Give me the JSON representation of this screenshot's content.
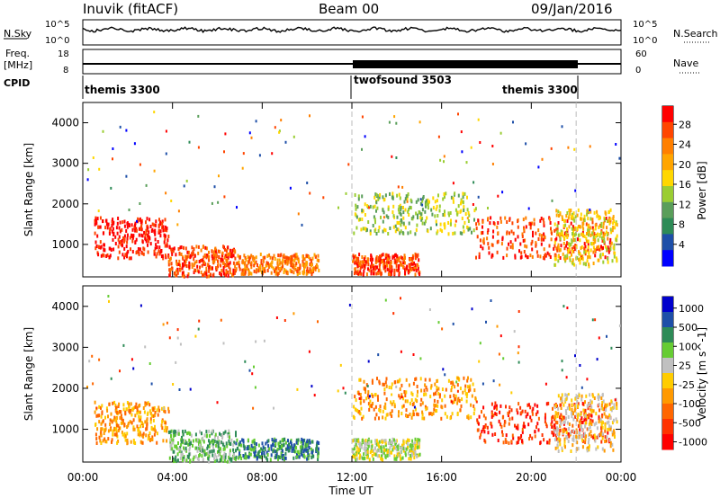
{
  "header": {
    "station": "Inuvik (fitACF)",
    "beam": "Beam 00",
    "date": "09/Jan/2016"
  },
  "sky_panel": {
    "left_label": "N.Sky",
    "right_label": "N.Search",
    "ticks": [
      "10^5",
      "10^0"
    ],
    "right_ticks": [
      "10^5",
      "10^0"
    ]
  },
  "freq_panel": {
    "left_label": "Freq.",
    "unit": "[MHz]",
    "right_label": "Nave",
    "left_ticks": [
      "18",
      "8"
    ],
    "right_ticks": [
      "60",
      "0"
    ]
  },
  "cpid": {
    "label": "CPID",
    "segments": [
      {
        "name": "themis 3300",
        "start_h": 0,
        "end_h": 12
      },
      {
        "name": "twofsound 3503",
        "start_h": 12,
        "end_h": 18
      },
      {
        "name": "themis 3300",
        "start_h": 18,
        "end_h": 22
      }
    ]
  },
  "colors": {
    "power_scale": [
      "#0000ff",
      "#1e4fa8",
      "#2e8b57",
      "#5a9e5a",
      "#9acd32",
      "#ffd700",
      "#ffa500",
      "#ff7f00",
      "#ff4500",
      "#ff0000"
    ],
    "velocity_scale": [
      "#0000cc",
      "#1e4fa8",
      "#2e8b57",
      "#66cc33",
      "#c0c0c0",
      "#ffcc00",
      "#ff9900",
      "#ff6600",
      "#ff3300",
      "#ff0000"
    ],
    "gray": "#c0c0c0"
  },
  "chart_data": [
    {
      "type": "heatmap",
      "title": "",
      "xlabel": "",
      "ylabel": "Slant Range [km]",
      "xlim": [
        0,
        24
      ],
      "ylim": [
        200,
        4500
      ],
      "x_ticks": [
        "00:00",
        "04:00",
        "08:00",
        "12:00",
        "16:00",
        "20:00",
        "00:00"
      ],
      "y_ticks": [
        "1000",
        "2000",
        "3000",
        "4000"
      ],
      "colorbar_label": "Power [dB]",
      "colorbar_ticks": [
        "4",
        "8",
        "12",
        "16",
        "20",
        "24",
        "28"
      ],
      "regions": [
        {
          "x0": 0.5,
          "x1": 3.8,
          "y0": 700,
          "y1": 1700,
          "level": 9
        },
        {
          "x0": 3.8,
          "x1": 6.8,
          "y0": 250,
          "y1": 1000,
          "level": 8
        },
        {
          "x0": 6.8,
          "x1": 10.5,
          "y0": 300,
          "y1": 800,
          "level": 7
        },
        {
          "x0": 12.0,
          "x1": 15.0,
          "y0": 300,
          "y1": 800,
          "level": 8
        },
        {
          "x0": 12.0,
          "x1": 17.5,
          "y0": 1300,
          "y1": 2300,
          "level": 4
        },
        {
          "x0": 17.5,
          "x1": 23.5,
          "y0": 700,
          "y1": 1700,
          "level": 8
        },
        {
          "x0": 21.0,
          "x1": 23.8,
          "y0": 500,
          "y1": 1900,
          "level": 5
        }
      ]
    },
    {
      "type": "heatmap",
      "title": "",
      "xlabel": "Time UT",
      "ylabel": "Slant Range [km]",
      "xlim": [
        0,
        24
      ],
      "ylim": [
        200,
        4500
      ],
      "x_ticks": [
        "00:00",
        "04:00",
        "08:00",
        "12:00",
        "16:00",
        "20:00",
        "00:00"
      ],
      "y_ticks": [
        "1000",
        "2000",
        "3000",
        "4000"
      ],
      "colorbar_label": "Velocity [m s^-1]",
      "colorbar_ticks": [
        "1000",
        "500",
        "100",
        "25",
        "-25",
        "-100",
        "-500",
        "-1000"
      ],
      "regions": [
        {
          "x0": 0.5,
          "x1": 3.8,
          "y0": 700,
          "y1": 1700,
          "level": 6
        },
        {
          "x0": 3.8,
          "x1": 6.8,
          "y0": 250,
          "y1": 1000,
          "level": 3
        },
        {
          "x0": 6.8,
          "x1": 10.5,
          "y0": 300,
          "y1": 800,
          "level": 2
        },
        {
          "x0": 12.0,
          "x1": 15.0,
          "y0": 300,
          "y1": 800,
          "level": 4
        },
        {
          "x0": 12.0,
          "x1": 17.5,
          "y0": 1300,
          "y1": 2300,
          "level": 6
        },
        {
          "x0": 17.5,
          "x1": 23.5,
          "y0": 700,
          "y1": 1700,
          "level": 8
        },
        {
          "x0": 21.0,
          "x1": 23.8,
          "y0": 500,
          "y1": 1900,
          "level": 5
        }
      ]
    }
  ]
}
